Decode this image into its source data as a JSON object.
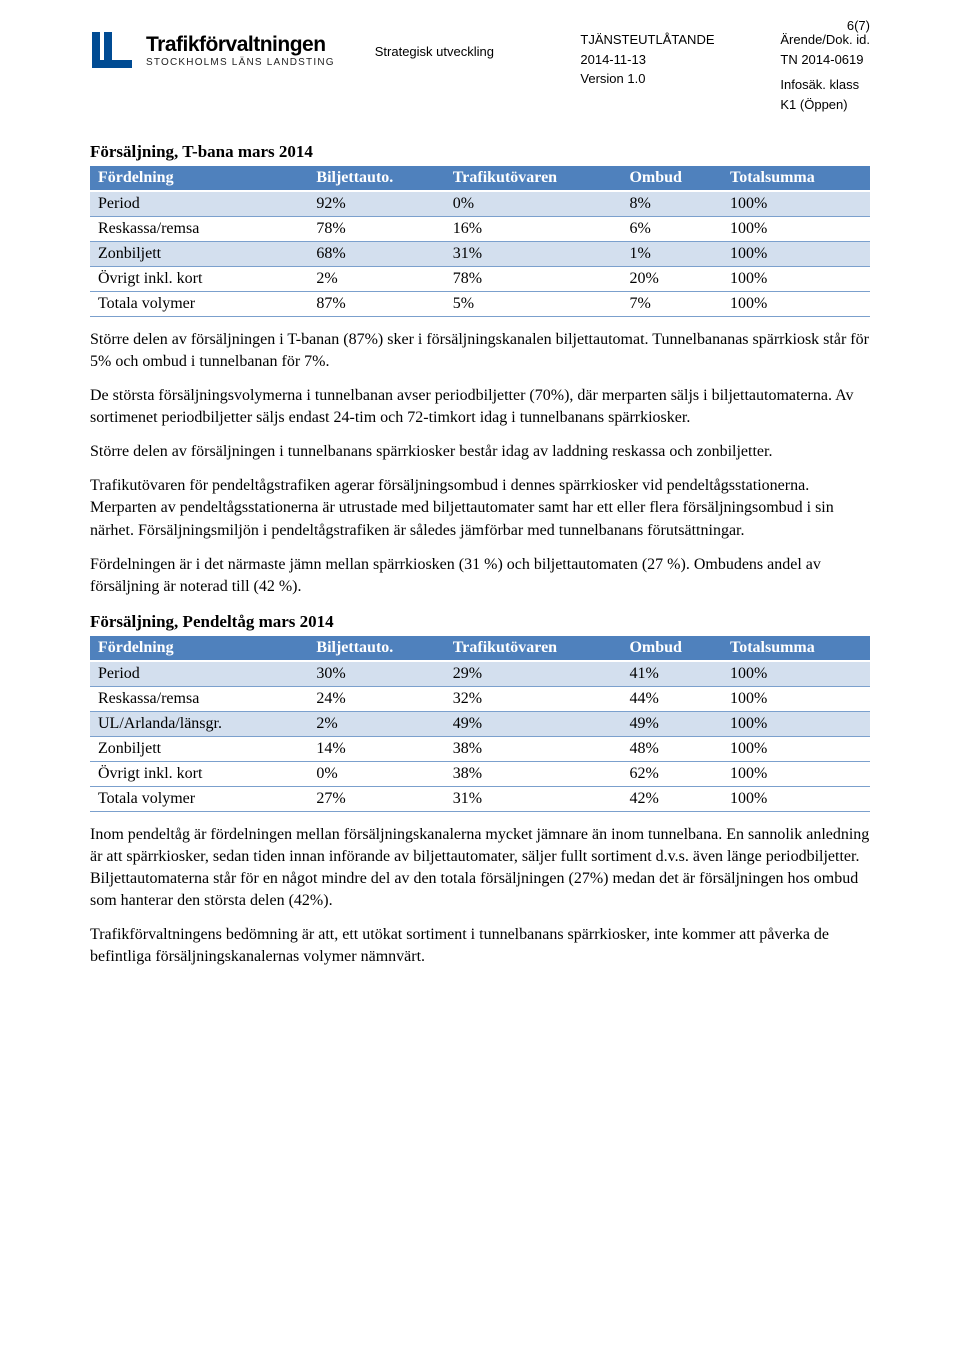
{
  "page_number": "6(7)",
  "logo": {
    "title": "Trafikförvaltningen",
    "subtitle": "STOCKHOLMS LÄNS LANDSTING",
    "bar_color": "#004b93"
  },
  "header_mid": {
    "line1": "TJÄNSTEUTLÅTANDE",
    "line2": "2014-11-13",
    "line3": "Version 1.0"
  },
  "header_right": {
    "l1": "Ärende/Dok. id.",
    "l2": "TN 2014-0619",
    "l3": "Infosäk. klass",
    "l4": "K1 (Öppen)"
  },
  "dept": "Strategisk utveckling",
  "table1": {
    "title": "Försäljning, T-bana mars 2014",
    "columns": [
      "Fördelning",
      "Biljettauto.",
      "Trafikutövaren",
      "Ombud",
      "Totalsumma"
    ],
    "rows": [
      [
        "Period",
        "92%",
        "0%",
        "8%",
        "100%"
      ],
      [
        "Reskassa/remsa",
        "78%",
        "16%",
        "6%",
        "100%"
      ],
      [
        "Zonbiljett",
        "68%",
        "31%",
        "1%",
        "100%"
      ],
      [
        "Övrigt inkl. kort",
        "2%",
        "78%",
        "20%",
        "100%"
      ],
      [
        "Totala volymer",
        "87%",
        "5%",
        "7%",
        "100%"
      ]
    ],
    "band_pattern": [
      "band",
      "plain",
      "band",
      "plain",
      "plain"
    ],
    "header_bg": "#4f81bd",
    "header_fg": "#ffffff",
    "band_bg": "#d3dfee",
    "border_color": "#7ba0cd"
  },
  "paras1": [
    "Större delen av försäljningen i T-banan (87%) sker i försäljningskanalen biljettautomat. Tunnelbananas spärrkiosk står för 5% och ombud i tunnelbanan för 7%.",
    "De största försäljningsvolymerna i tunnelbanan avser periodbiljetter (70%), där merparten säljs i biljettautomaterna. Av sortimenet periodbiljetter säljs endast 24-tim och 72-timkort idag i tunnelbanans spärrkiosker.",
    "Större delen av försäljningen i tunnelbanans spärrkiosker består idag av laddning reskassa och zonbiljetter.",
    "Trafikutövaren för pendeltågstrafiken agerar försäljningsombud i dennes spärrkiosker vid pendeltågsstationerna. Merparten av pendeltågsstationerna är utrustade med biljettautomater samt har ett eller flera försäljningsombud i sin närhet. Försäljningsmiljön i pendeltågstrafiken är således jämförbar med tunnelbanans förutsättningar.",
    "Fördelningen är i det närmaste jämn mellan spärrkiosken (31 %) och biljettautomaten (27 %). Ombudens andel av försäljning är noterad till (42 %)."
  ],
  "table2": {
    "title": "Försäljning, Pendeltåg mars 2014",
    "columns": [
      "Fördelning",
      "Biljettauto.",
      "Trafikutövaren",
      "Ombud",
      "Totalsumma"
    ],
    "rows": [
      [
        "Period",
        "30%",
        "29%",
        "41%",
        "100%"
      ],
      [
        "Reskassa/remsa",
        "24%",
        "32%",
        "44%",
        "100%"
      ],
      [
        "UL/Arlanda/länsgr.",
        "2%",
        "49%",
        "49%",
        "100%"
      ],
      [
        "Zonbiljett",
        "14%",
        "38%",
        "48%",
        "100%"
      ],
      [
        "Övrigt inkl. kort",
        "0%",
        "38%",
        "62%",
        "100%"
      ],
      [
        "Totala volymer",
        "27%",
        "31%",
        "42%",
        "100%"
      ]
    ],
    "band_pattern": [
      "band",
      "plain",
      "band",
      "plain",
      "plain",
      "plain"
    ]
  },
  "paras2": [
    "Inom pendeltåg är fördelningen mellan försäljningskanalerna mycket jämnare än inom tunnelbana. En sannolik anledning är att spärrkiosker, sedan tiden innan införande av biljettautomater, säljer fullt sortiment d.v.s. även länge periodbiljetter. Biljettautomaterna står för en något mindre del av den totala försäljningen (27%) medan det är försäljningen hos ombud som hanterar den största delen (42%).",
    "Trafikförvaltningens bedömning är att, ett utökat sortiment i tunnelbanans spärrkiosker, inte kommer att påverka de befintliga försäljningskanalernas volymer nämnvärt."
  ]
}
